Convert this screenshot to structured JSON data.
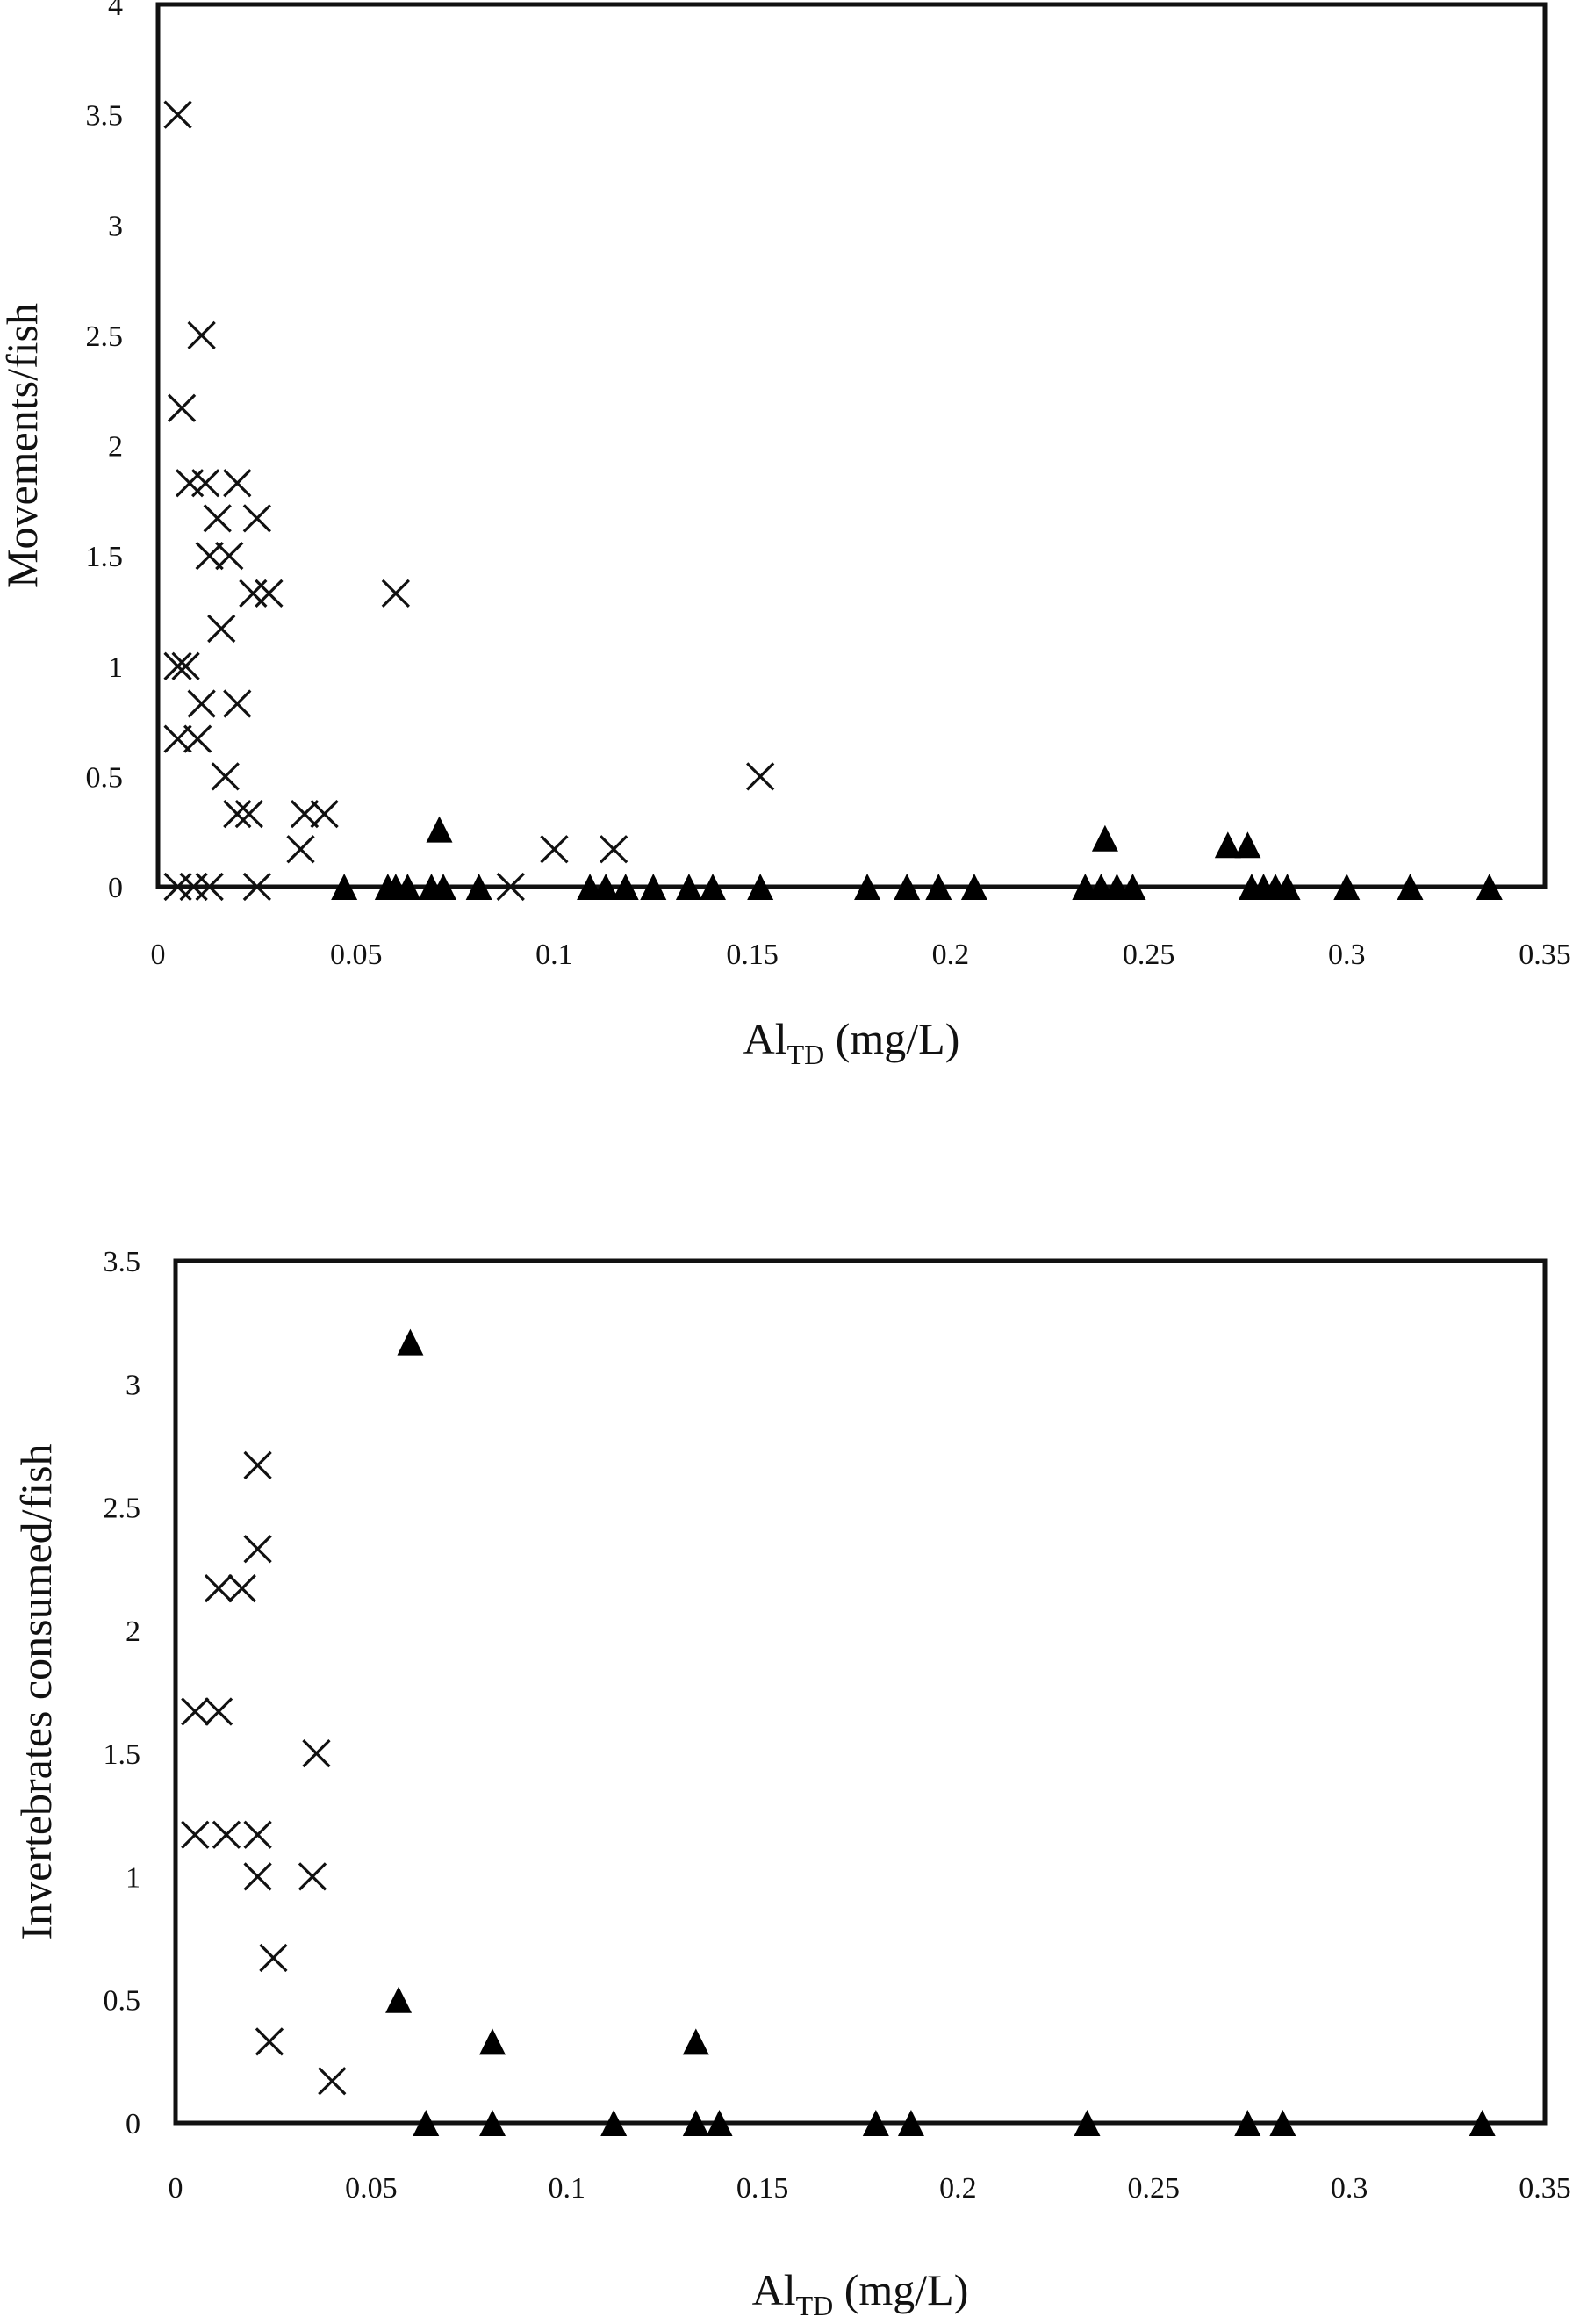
{
  "chart_data": [
    {
      "type": "scatter",
      "title": "",
      "xlabel": {
        "main": "Al",
        "sub": "TD",
        "unit": " (mg/L)"
      },
      "ylabel": "Movements/fish",
      "xlim": [
        0,
        0.35
      ],
      "ylim": [
        0,
        4
      ],
      "xticks": [
        "0",
        "0.05",
        "0.1",
        "0.15",
        "0.2",
        "0.25",
        "0.3",
        "0.35"
      ],
      "yticks": [
        "0",
        "0.5",
        "1",
        "1.5",
        "2",
        "2.5",
        "3",
        "3.5",
        "4"
      ],
      "grid": false,
      "series": [
        {
          "marker": "cross",
          "x": [
            0.005,
            0.011,
            0.006,
            0.008,
            0.02,
            0.012,
            0.025,
            0.018,
            0.013,
            0.015,
            0.024,
            0.028,
            0.06,
            0.005,
            0.007,
            0.016,
            0.011,
            0.02,
            0.01,
            0.005,
            0.017,
            0.02,
            0.023,
            0.037,
            0.042,
            0.036,
            0.152,
            0.1,
            0.115,
            0.005,
            0.009,
            0.013,
            0.025,
            0.089
          ],
          "y": [
            3.5,
            2.5,
            2.17,
            1.83,
            1.83,
            1.83,
            1.67,
            1.5,
            1.5,
            1.67,
            1.33,
            1.33,
            1.33,
            1.0,
            1.0,
            1.17,
            0.83,
            0.83,
            0.67,
            0.67,
            0.5,
            0.33,
            0.33,
            0.33,
            0.33,
            0.17,
            0.5,
            0.17,
            0.17,
            0.0,
            0.0,
            0.0,
            0.0,
            0.0
          ]
        },
        {
          "marker": "triangle",
          "x": [
            0.071,
            0.239,
            0.27,
            0.275,
            0.047,
            0.058,
            0.06,
            0.063,
            0.069,
            0.072,
            0.081,
            0.109,
            0.113,
            0.118,
            0.125,
            0.134,
            0.14,
            0.152,
            0.179,
            0.189,
            0.197,
            0.206,
            0.234,
            0.238,
            0.242,
            0.246,
            0.276,
            0.279,
            0.282,
            0.285,
            0.3,
            0.316,
            0.336
          ],
          "y": [
            0.26,
            0.22,
            0.19,
            0.19,
            0,
            0,
            0,
            0,
            0,
            0,
            0,
            0,
            0,
            0,
            0,
            0,
            0,
            0,
            0,
            0,
            0,
            0,
            0,
            0,
            0,
            0,
            0,
            0,
            0,
            0,
            0,
            0,
            0
          ]
        }
      ]
    },
    {
      "type": "scatter",
      "title": "",
      "xlabel": {
        "main": "Al",
        "sub": "TD",
        "unit": " (mg/L)"
      },
      "ylabel": "Invertebrates consumed/fish",
      "xlim": [
        0,
        0.35
      ],
      "ylim": [
        0,
        3.5
      ],
      "xticks": [
        "0",
        "0.05",
        "0.1",
        "0.15",
        "0.2",
        "0.25",
        "0.3",
        "0.35"
      ],
      "yticks": [
        "0",
        "0.5",
        "1",
        "1.5",
        "2",
        "2.5",
        "3",
        "3.5"
      ],
      "grid": false,
      "series": [
        {
          "marker": "cross",
          "x": [
            0.021,
            0.021,
            0.011,
            0.017,
            0.005,
            0.011,
            0.036,
            0.005,
            0.013,
            0.021,
            0.021,
            0.035,
            0.025,
            0.024,
            0.04
          ],
          "y": [
            2.67,
            2.33,
            2.17,
            2.17,
            1.67,
            1.67,
            1.5,
            1.17,
            1.17,
            1.17,
            1.0,
            1.0,
            0.67,
            0.33,
            0.17
          ]
        },
        {
          "marker": "triangle",
          "x": [
            0.06,
            0.057,
            0.081,
            0.133,
            0.064,
            0.081,
            0.112,
            0.133,
            0.139,
            0.179,
            0.188,
            0.233,
            0.274,
            0.283,
            0.334
          ],
          "y": [
            3.17,
            0.5,
            0.33,
            0.33,
            0,
            0,
            0,
            0,
            0,
            0,
            0,
            0,
            0,
            0,
            0
          ]
        }
      ]
    }
  ]
}
